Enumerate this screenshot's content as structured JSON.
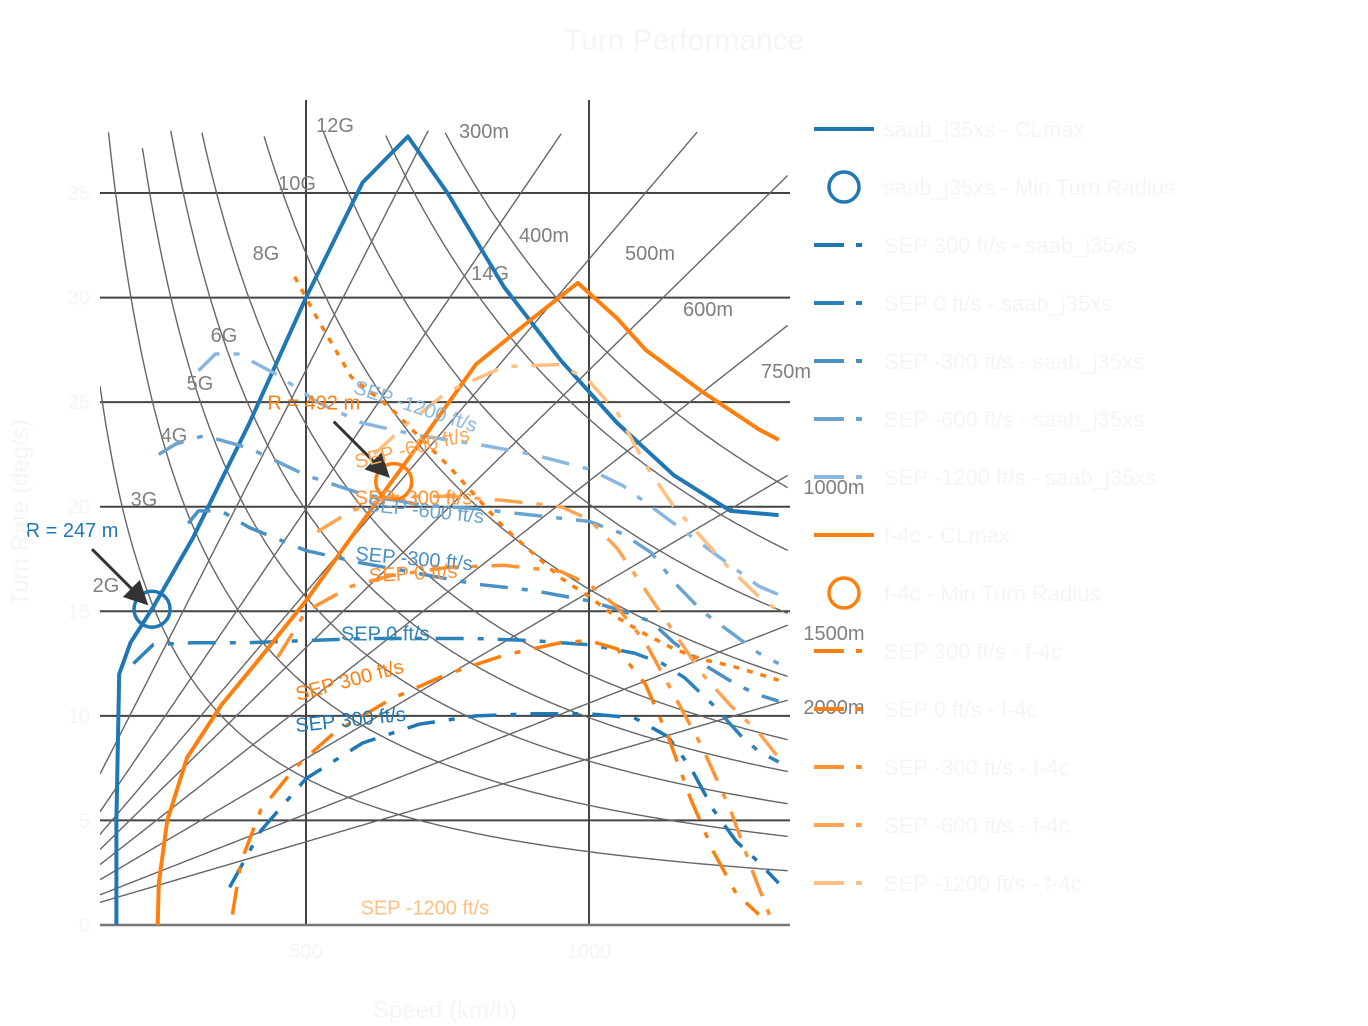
{
  "chart_data": {
    "type": "line",
    "title": "Turn Performance",
    "xlabel": "Speed (km/h)",
    "ylabel": "Turn Rate (deg/s)",
    "xlim": [
      136,
      1355
    ],
    "ylim": [
      0,
      39.4
    ],
    "xticks": [
      500,
      1000
    ],
    "yticks": [
      0,
      5,
      10,
      15,
      20,
      25,
      30,
      35
    ],
    "grid": true,
    "legend_position": "right",
    "g_lines": [
      {
        "label": "2G",
        "n": 2
      },
      {
        "label": "3G",
        "n": 3
      },
      {
        "label": "4G",
        "n": 4
      },
      {
        "label": "5G",
        "n": 5
      },
      {
        "label": "6G",
        "n": 6
      },
      {
        "label": "8G",
        "n": 8
      },
      {
        "label": "10G",
        "n": 10
      },
      {
        "label": "12G",
        "n": 12
      },
      {
        "label": "14G",
        "n": 14
      }
    ],
    "radius_lines": [
      {
        "label": "300m",
        "r": 300
      },
      {
        "label": "400m",
        "r": 400
      },
      {
        "label": "500m",
        "r": 500
      },
      {
        "label": "600m",
        "r": 600
      },
      {
        "label": "750m",
        "r": 750
      },
      {
        "label": "1000m",
        "r": 1000
      },
      {
        "label": "1500m",
        "r": 1500
      },
      {
        "label": "2000m",
        "r": 2000
      }
    ],
    "series": [
      {
        "name": "saab_j35xs - CLmax",
        "color": "#1f77b4",
        "style": "solid",
        "x": [
          165,
          165,
          170,
          190,
          230,
          300,
          400,
          500,
          600,
          680,
          750,
          850,
          950,
          1050,
          1150,
          1250,
          1335
        ],
        "y": [
          0,
          5,
          12,
          13.5,
          15.2,
          18.5,
          24,
          30,
          35.5,
          37.7,
          35,
          30.5,
          27,
          24,
          21.5,
          19.8,
          19.6
        ]
      },
      {
        "name": "saab_j35xs - Min Turn Radius",
        "color": "#1f77b4",
        "style": "marker",
        "x": [
          228
        ],
        "y": [
          15.1
        ],
        "annotation": "R = 247 m"
      },
      {
        "name": "SEP 300 ft/s - saab_j35xs",
        "color": "#1f77b4",
        "style": "dashdot",
        "x": [
          365,
          420,
          500,
          600,
          700,
          800,
          900,
          1000,
          1080,
          1140,
          1180,
          1220,
          1260,
          1300,
          1335
        ],
        "y": [
          1.8,
          4.5,
          7,
          8.7,
          9.6,
          10,
          10.1,
          10.1,
          9.9,
          9,
          7.5,
          5.5,
          4,
          3,
          2
        ]
      },
      {
        "name": "SEP 0 ft/s - saab_j35xs",
        "color": "#2b83ba",
        "style": "dashdot",
        "x": [
          195,
          230,
          300,
          400,
          500,
          600,
          700,
          800,
          900,
          1000,
          1080,
          1130,
          1170,
          1220,
          1270,
          1300,
          1335
        ],
        "y": [
          12.5,
          13.4,
          13.5,
          13.5,
          13.6,
          13.7,
          13.7,
          13.7,
          13.6,
          13.4,
          13,
          12.5,
          11.8,
          10.5,
          9,
          8.3,
          7.8
        ]
      },
      {
        "name": "SEP -300 ft/s - saab_j35xs",
        "color": "#4a90c4",
        "style": "dashdot",
        "x": [
          292,
          310,
          350,
          400,
          500,
          600,
          700,
          800,
          900,
          1000,
          1060,
          1110,
          1150,
          1200,
          1260,
          1300,
          1335
        ],
        "y": [
          19.2,
          19.8,
          19.8,
          19,
          17.9,
          17.3,
          16.8,
          16.3,
          16,
          15.5,
          15,
          14.5,
          13.5,
          12.5,
          11.5,
          11,
          10.7
        ]
      },
      {
        "name": "SEP -600 ft/s - saab_j35xs",
        "color": "#6aa3d0",
        "style": "dashdot",
        "x": [
          240,
          270,
          320,
          400,
          500,
          600,
          700,
          800,
          900,
          1000,
          1060,
          1110,
          1150,
          1200,
          1250,
          1300,
          1335
        ],
        "y": [
          22.5,
          23,
          23.4,
          22.8,
          21.5,
          20.6,
          20.1,
          19.9,
          19.6,
          19.3,
          18.7,
          17.8,
          16.4,
          15,
          14,
          13,
          12.5
        ]
      },
      {
        "name": "SEP -1200 ft/s - saab_j35xs",
        "color": "#8ab8de",
        "style": "dashdot",
        "x": [
          310,
          340,
          380,
          450,
          520,
          600,
          700,
          800,
          900,
          1000,
          1060,
          1120,
          1180,
          1240,
          1300,
          1335
        ],
        "y": [
          26.5,
          27.3,
          27.3,
          26.3,
          25,
          24,
          23.4,
          23,
          22.5,
          21.8,
          21,
          19.8,
          18.6,
          17.4,
          16.2,
          15.8
        ]
      },
      {
        "name": "f-4c - CLmax",
        "color": "#ff7f0e",
        "style": "solid",
        "x": [
          238,
          240,
          255,
          290,
          350,
          420,
          500,
          600,
          700,
          800,
          900,
          980,
          1050,
          1100,
          1200,
          1300,
          1335
        ],
        "y": [
          0,
          2,
          5,
          8,
          10.5,
          12.8,
          15.5,
          19.3,
          23,
          26.8,
          29,
          30.7,
          29,
          27.5,
          25.5,
          23.7,
          23.2
        ]
      },
      {
        "name": "f-4c - Min Turn Radius",
        "color": "#ff7f0e",
        "style": "marker",
        "x": [
          655
        ],
        "y": [
          21.2
        ],
        "annotation": "R = 492 m"
      },
      {
        "name": "SEP 300 ft/s - f-4c",
        "color": "#ff7f0e",
        "style": "dotted-dashdot",
        "x": [
          480,
          520,
          580,
          650,
          750,
          850,
          950,
          1000,
          1050,
          1100,
          1150,
          1200,
          1250,
          1300,
          1335
        ],
        "y": [
          31,
          29,
          26.2,
          24.7,
          22,
          19,
          16.6,
          15.7,
          14.7,
          13.9,
          13.2,
          12.7,
          12.4,
          12,
          11.7
        ]
      },
      {
        "name": "SEP 0 ft/s - f-4c",
        "color": "#ff7f0e",
        "style": "dashdot",
        "x": [
          370,
          385,
          420,
          480,
          550,
          650,
          750,
          850,
          950,
          1000,
          1050,
          1100,
          1140,
          1180,
          1220,
          1260,
          1300
        ],
        "y": [
          0.5,
          3,
          5.5,
          7.5,
          9.2,
          10.8,
          12,
          12.9,
          13.5,
          13.6,
          13.2,
          11.5,
          9,
          6,
          3.5,
          1.5,
          0.5
        ]
      },
      {
        "name": "SEP -300 ft/s - f-4c",
        "color": "#ff9233",
        "style": "dashdot",
        "x": [
          450,
          500,
          580,
          650,
          750,
          850,
          950,
          1000,
          1050,
          1100,
          1150,
          1200,
          1250,
          1290,
          1320
        ],
        "y": [
          12.8,
          15,
          16.2,
          16.7,
          17.1,
          17.2,
          16.9,
          16.3,
          15.2,
          13.5,
          11,
          8.5,
          5.5,
          2.5,
          0.4
        ]
      },
      {
        "name": "SEP -600 ft/s - f-4c",
        "color": "#ffa552",
        "style": "dashdot",
        "x": [
          520,
          580,
          650,
          750,
          850,
          950,
          1000,
          1050,
          1100,
          1150,
          1200,
          1250,
          1300,
          1335
        ],
        "y": [
          18.8,
          19.8,
          20.5,
          20.5,
          20.3,
          20,
          19.4,
          18,
          16,
          14,
          12,
          10.5,
          9.2,
          8
        ]
      },
      {
        "name": "SEP -1200 ft/s - f-4c",
        "color": "#ffbf80",
        "style": "dashdot",
        "x": [
          620,
          680,
          750,
          850,
          950,
          1000,
          1050,
          1100,
          1150,
          1200,
          1250,
          1300,
          1335
        ],
        "y": [
          22.5,
          24,
          25.5,
          26.7,
          26.8,
          26,
          24.5,
          22,
          20,
          18.5,
          17,
          15.7,
          15
        ]
      }
    ],
    "annotations": [
      {
        "text": "SEP -1200 ft/s",
        "color": "#8ab8de",
        "x": 690,
        "y": 24.5,
        "angle": 18
      },
      {
        "text": "SEP -600 ft/s",
        "color": "#ffa552",
        "x": 690,
        "y": 22.5,
        "angle": -14
      },
      {
        "text": "SEP -300 ft/s",
        "color": "#ff9233",
        "x": 690,
        "y": 20.1,
        "angle": 0
      },
      {
        "text": "SEP -600 ft/s",
        "color": "#6aa3d0",
        "x": 710,
        "y": 19.5,
        "angle": 6
      },
      {
        "text": "SEP -300 ft/s",
        "color": "#4a90c4",
        "x": 690,
        "y": 17.2,
        "angle": 5
      },
      {
        "text": "SEP 0 ft/s",
        "color": "#ff9233",
        "x": 690,
        "y": 16.5,
        "angle": -3
      },
      {
        "text": "SEP 0 ft/s",
        "color": "#2b83ba",
        "x": 640,
        "y": 13.6,
        "angle": 0
      },
      {
        "text": "SEP 300 ft/s",
        "color": "#ff7f0e",
        "x": 580,
        "y": 11.4,
        "angle": -15
      },
      {
        "text": "SEP 300 ft/s",
        "color": "#1f77b4",
        "x": 580,
        "y": 9.5,
        "angle": -6
      },
      {
        "text": "SEP -1200 ft/s",
        "color": "#ffbf80",
        "x": 710,
        "y": 0.5,
        "angle": 0
      }
    ]
  }
}
